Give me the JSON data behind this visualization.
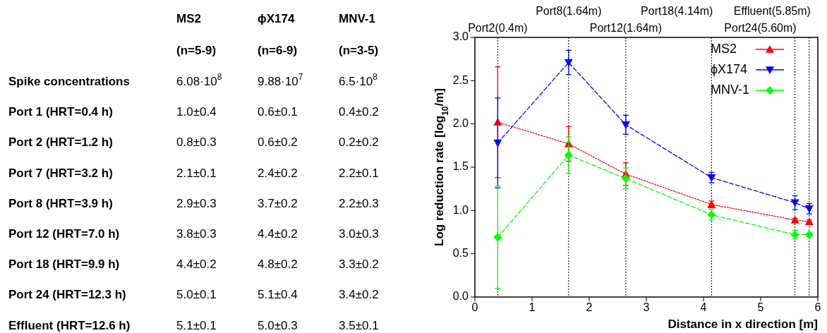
{
  "chart_data": [
    {
      "type": "other",
      "categories": [
        "MS2",
        "ϕX174",
        "MNV-1"
      ],
      "y_categories": [
        null,
        "Spike concentrations",
        "Port 1 (HRT=0.4 h)",
        "Port 2 (HRT=1.2 h)",
        "Port 7 (HRT=3.2 h)",
        "Port 8 (HRT=3.9 h)",
        "Port 12 (HRT=7.0 h)",
        "Port 18 (HRT=9.9 h)",
        "Port 24 (HRT=12.3 h)",
        "Effluent (HRT=12.6 h)"
      ],
      "cell_labels": [
        [
          "(n=5-9)",
          "(n=6-9)",
          "(n=3-5)"
        ],
        [
          "6.08·10$^{8}$",
          "9.88·10$^{7}$",
          "6.5·10$^{8}$"
        ],
        [
          "1.0±0.4",
          "0.6±0.1",
          "0.4±0.2"
        ],
        [
          "0.8±0.3",
          "0.6±0.2",
          "0.2±0.2"
        ],
        [
          "2.1±0.1",
          "2.4±0.2",
          "2.2±0.1"
        ],
        [
          "2.9±0.3",
          "3.7±0.2",
          "2.2±0.3"
        ],
        [
          "3.8±0.3",
          "4.4±0.2",
          "3.0±0.3"
        ],
        [
          "4.4±0.2",
          "4.8±0.2",
          "3.3±0.2"
        ],
        [
          "5.0±0.1",
          "5.1±0.4",
          "3.4±0.2"
        ],
        [
          "5.1±0.1",
          "5.0±0.3",
          "3.5±0.1"
        ]
      ]
    },
    {
      "type": "line",
      "xlabel": "Distance in x direction [m]",
      "ylabel": "Log reduction rate [log$_{10}$/m]",
      "x": [
        0.4,
        1.64,
        2.64,
        4.14,
        5.6,
        5.85
      ],
      "xlim": [
        0,
        6
      ],
      "xticks": [
        0,
        1,
        2,
        3,
        4,
        5,
        6
      ],
      "ylim": [
        0,
        3
      ],
      "yticks": [
        {
          "value": 0,
          "label": "0.0"
        },
        {
          "value": 0.5,
          "label": "0.5"
        },
        {
          "value": 1,
          "label": "1.0"
        },
        {
          "value": 1.5,
          "label": "1.5"
        },
        {
          "value": 2,
          "label": "2.0"
        },
        {
          "value": 2.5,
          "label": "2.5"
        },
        {
          "value": 3,
          "label": "3.0"
        }
      ],
      "legend": "top right",
      "series": [
        {
          "name": "MS2",
          "color": "#ff0000",
          "marker": "triangle",
          "line_style": "dotted",
          "values": [
            2.02,
            1.77,
            1.42,
            1.07,
            0.89,
            0.87
          ],
          "errors": [
            0.64,
            0.2,
            0.13,
            0.04,
            0.02,
            0.02
          ]
        },
        {
          "name": "ϕX174",
          "color": "#0000ff",
          "marker": "triangle-down",
          "line_style": "dashed",
          "values": [
            1.78,
            2.71,
            1.99,
            1.38,
            1.09,
            1.02
          ],
          "errors": [
            0.52,
            0.14,
            0.11,
            0.06,
            0.08,
            0.06
          ]
        },
        {
          "name": "MNV-1",
          "color": "#00ff00",
          "marker": "diamond",
          "line_style": "dashed",
          "values": [
            0.69,
            1.64,
            1.37,
            0.95,
            0.72,
            0.72
          ],
          "errors": [
            0.59,
            0.21,
            0.12,
            0.06,
            0.05,
            0.02
          ]
        }
      ],
      "ref_lines": [
        {
          "axis": "x",
          "value": 0.4,
          "label": "Port2(0.4m)",
          "line_style": "dotted",
          "color": "#000000"
        },
        {
          "axis": "x",
          "value": 1.64,
          "label": "Port8(1.64m)",
          "line_style": "dotted",
          "color": "#000000"
        },
        {
          "axis": "x",
          "value": 2.64,
          "label": "Port12(1.64m)",
          "line_style": "dotted",
          "color": "#000000"
        },
        {
          "axis": "x",
          "value": 4.14,
          "label": "Port18(4.14m)",
          "line_style": "dotted",
          "color": "#000000"
        },
        {
          "axis": "x",
          "value": 5.6,
          "label": "Port24(5.60m)",
          "line_style": "dotted",
          "color": "#000000"
        },
        {
          "axis": "x",
          "value": 5.85,
          "label": "Effluent(5.85m)",
          "line_style": "dotted",
          "color": "#000000"
        }
      ]
    }
  ]
}
